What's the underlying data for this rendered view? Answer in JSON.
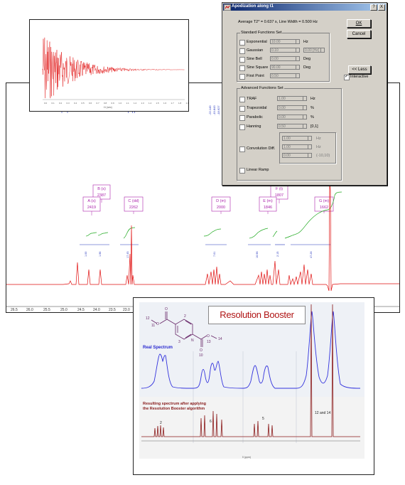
{
  "fid": {
    "ticks": [
      "0.0",
      "0.1",
      "0.2",
      "0.3",
      "0.4",
      "0.5",
      "0.6",
      "0.7",
      "0.8",
      "0.9",
      "1.0",
      "1.1",
      "1.2",
      "1.3",
      "1.4",
      "1.5",
      "1.6",
      "1.7",
      "1.8",
      "1.9"
    ],
    "axis_unit": "t1 (sec)"
  },
  "spectrum": {
    "peaks": [
      {
        "letter_line": "B (s)",
        "value": "2387"
      },
      {
        "letter_line": "A (s)",
        "value": "2419"
      },
      {
        "letter_line": "C (dd)",
        "value": "2262"
      },
      {
        "letter_line": "D (m)",
        "value": "2000"
      },
      {
        "letter_line": "F (t)",
        "value": "1807"
      },
      {
        "letter_line": "E (m)",
        "value": "1846"
      },
      {
        "letter_line": "G (m)",
        "value": "1662"
      }
    ],
    "integrals": [
      "1.00",
      "1.96",
      "17.45",
      "7.01",
      "10.96",
      "2.15",
      "47.26"
    ],
    "top_labels": [
      "-22.149",
      "-19.843",
      "-18.627"
    ],
    "axis_ticks": [
      "26.5",
      "26.0",
      "25.5",
      "25.0",
      "24.5",
      "24.0",
      "23.5",
      "23.0"
    ]
  },
  "apodization": {
    "title": "Apodization along t1",
    "info": "Average T2* = 0.637 s, Line Width = 0.500 Hz",
    "standard_group": "Standard Functions Set",
    "standard": [
      {
        "label": "Exponential",
        "value": "10.00",
        "unit": "Hz"
      },
      {
        "label": "Gaussian",
        "value": "0.10",
        "unit": "",
        "extra": "0.00 [Hz]"
      },
      {
        "label": "Sine Bell",
        "value": "0.00",
        "unit": "Deg"
      },
      {
        "label": "Sine Square",
        "value": "90.00",
        "unit": "Deg"
      },
      {
        "label": "First Point",
        "value": "0.50",
        "unit": ""
      }
    ],
    "advanced_group": "Advanced Functions Set",
    "advanced": [
      {
        "label": "TRAF",
        "value": "1.00",
        "unit": "Hz"
      },
      {
        "label": "Trapezoidal",
        "value": "0.00",
        "unit": "%"
      },
      {
        "label": "Parabolic",
        "value": "0.00",
        "unit": "%"
      },
      {
        "label": "Hanning",
        "value": "0.50",
        "unit": "[0,1]"
      }
    ],
    "convolution_label": "Convolution Diff.",
    "convolution_fields": [
      {
        "value": "1.00",
        "unit": "Hz"
      },
      {
        "value": "1.00",
        "unit": "Hz"
      },
      {
        "value": "0.00",
        "unit": "(-10,10)"
      }
    ],
    "linear_ramp": "Linear Ramp",
    "ok": "OK",
    "cancel": "Cancel",
    "less": "<< Less",
    "interactive": "Interactive",
    "help_btn": "?",
    "close_btn": "X"
  },
  "resolution_booster": {
    "title": "Resolution Booster",
    "real_label": "Real Spectrum",
    "result_label_1": "Resulting spectrum after applying",
    "result_label_2": "the Resolution Booster algorithm",
    "peak_labels": [
      "2",
      "6",
      "5",
      "12 and 14"
    ],
    "mol_labels": [
      "12",
      "O",
      "11",
      "O",
      "3",
      "N",
      "O",
      "13",
      "14",
      "O",
      "10",
      "2"
    ],
    "axis_unit": "δ (ppm)",
    "colors": {
      "real": "#3333dd",
      "result": "#8b1a1a",
      "title": "#b01515"
    }
  }
}
